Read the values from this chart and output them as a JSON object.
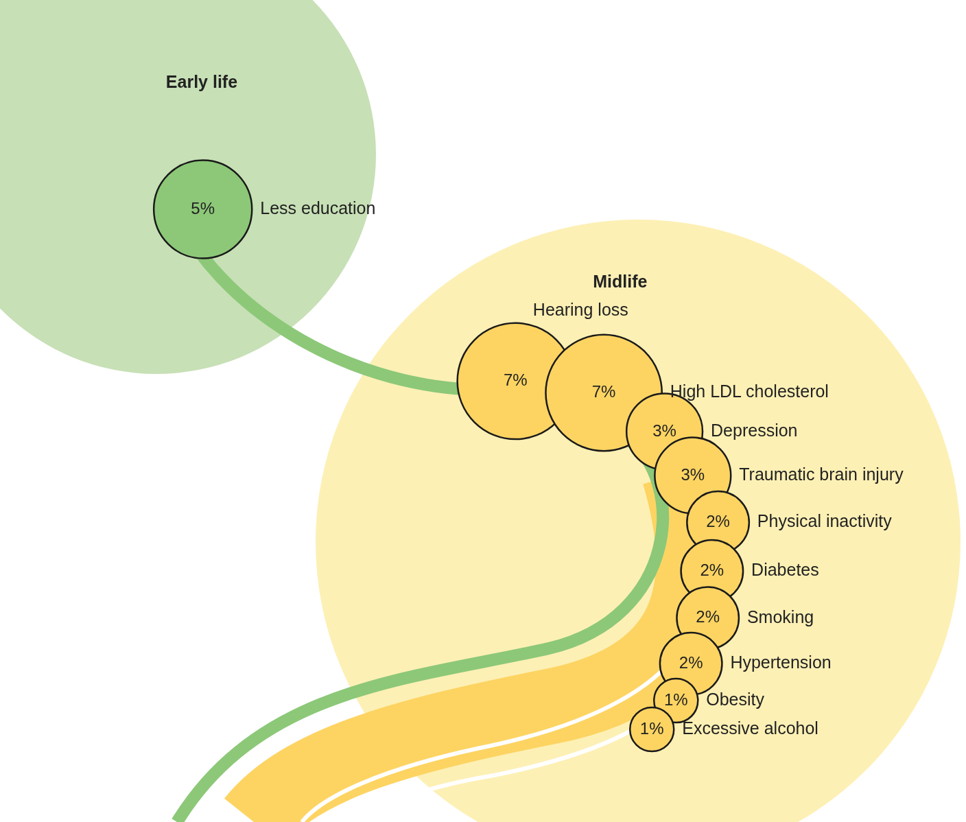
{
  "chart_data": {
    "type": "other",
    "categories": [
      "Less education",
      "Hearing loss",
      "High LDL cholesterol",
      "Depression",
      "Traumatic brain injury",
      "Physical inactivity",
      "Diabetes",
      "Smoking",
      "Hypertension",
      "Obesity",
      "Excessive alcohol"
    ],
    "annotations": [
      "Early life",
      "Midlife"
    ],
    "series": [
      {
        "color": "#8cc878",
        "values": [
          5,
          null,
          null,
          null,
          null,
          null,
          null,
          null,
          null,
          null,
          null
        ],
        "value_labels": [
          "5%",
          null,
          null,
          null,
          null,
          null,
          null,
          null,
          null,
          null,
          null
        ]
      },
      {
        "color": "#fdd462",
        "values": [
          null,
          7,
          7,
          3,
          3,
          2,
          2,
          2,
          2,
          1,
          1
        ],
        "value_labels": [
          null,
          "7%",
          "7%",
          "3%",
          "3%",
          "2%",
          "2%",
          "2%",
          "2%",
          "1%",
          "1%"
        ]
      }
    ]
  }
}
